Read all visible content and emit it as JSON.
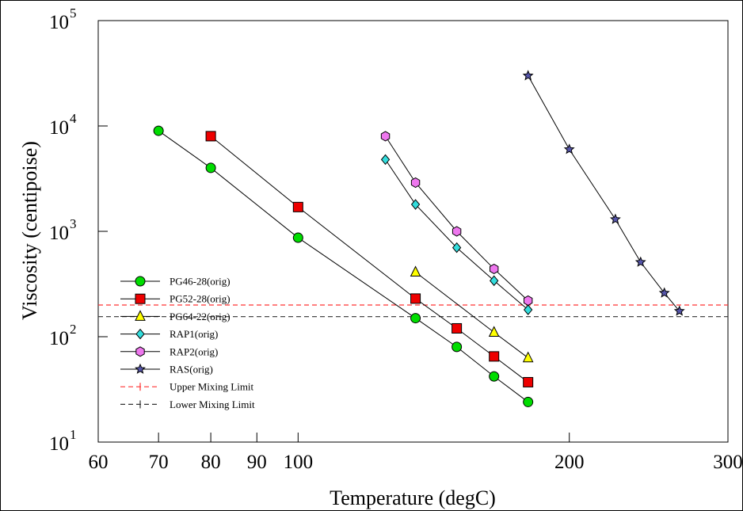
{
  "chart_data": {
    "type": "line",
    "title": "",
    "xlabel": "Temperature (degC)",
    "ylabel": "Viscosity (centipoise)",
    "x_scale": "log",
    "y_scale": "log",
    "xlim": [
      60,
      300
    ],
    "ylim": [
      10,
      100000
    ],
    "x_ticks": [
      60,
      70,
      80,
      90,
      100,
      200,
      300
    ],
    "x_tick_labels": [
      "60",
      "70",
      "80",
      "90",
      "100",
      "200",
      "300"
    ],
    "y_ticks": [
      10,
      100,
      1000,
      10000,
      100000
    ],
    "y_tick_labels": [
      {
        "base": "10",
        "exp": "1"
      },
      {
        "base": "10",
        "exp": "2"
      },
      {
        "base": "10",
        "exp": "3"
      },
      {
        "base": "10",
        "exp": "4"
      },
      {
        "base": "10",
        "exp": "5"
      }
    ],
    "grid": false,
    "legend_position": "bottom-left",
    "series": [
      {
        "name": "PG46-28(orig)",
        "marker": "circle",
        "color": "#00dd00",
        "x": [
          70,
          80,
          100,
          135,
          150,
          165,
          180
        ],
        "y": [
          9000,
          4000,
          870,
          150,
          80,
          42,
          24
        ]
      },
      {
        "name": "PG52-28(orig)",
        "marker": "square",
        "color": "#ee0000",
        "x": [
          80,
          100,
          135,
          150,
          165,
          180
        ],
        "y": [
          8000,
          1700,
          230,
          120,
          65,
          37
        ]
      },
      {
        "name": "PG64-22(orig)",
        "marker": "triangle",
        "color": "#ffff00",
        "x": [
          135,
          165,
          180
        ],
        "y": [
          410,
          110,
          63
        ]
      },
      {
        "name": "RAP1(orig)",
        "marker": "diamond",
        "color": "#33dddd",
        "x": [
          125,
          135,
          150,
          165,
          180
        ],
        "y": [
          4800,
          1800,
          700,
          340,
          180
        ]
      },
      {
        "name": "RAP2(orig)",
        "marker": "hexagon",
        "color": "#ee77ee",
        "x": [
          125,
          135,
          150,
          165,
          180
        ],
        "y": [
          8000,
          2900,
          1000,
          440,
          220
        ]
      },
      {
        "name": "RAS(orig)",
        "marker": "star",
        "color": "#5555aa",
        "x": [
          180,
          200,
          225,
          240,
          255,
          265
        ],
        "y": [
          30000,
          6000,
          1300,
          510,
          260,
          175
        ]
      }
    ],
    "reference_lines": [
      {
        "name": "Upper Mixing Limit",
        "y": 200,
        "color": "#ff3333"
      },
      {
        "name": "Lower Mixing Limit",
        "y": 155,
        "color": "#333333"
      }
    ]
  }
}
